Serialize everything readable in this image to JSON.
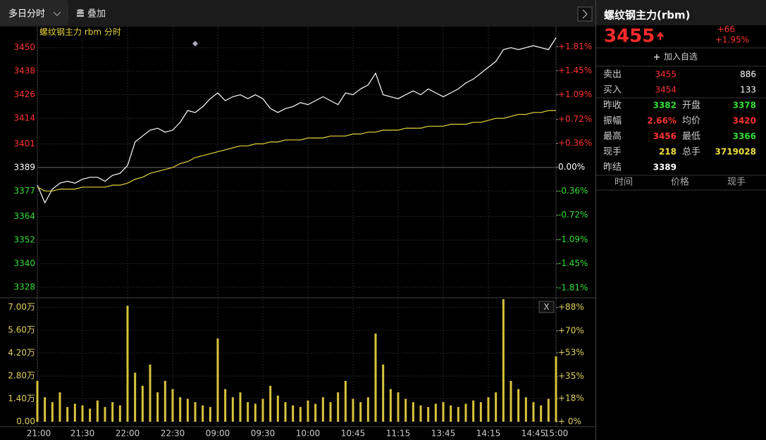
{
  "toolbar": {
    "tab": "多日分时",
    "overlay": "叠加"
  },
  "chart_data": [
    {
      "type": "line",
      "legend": "螺纹钢主力 rbm 分时",
      "x": [
        0,
        5,
        10,
        15,
        20,
        25,
        30,
        35,
        40,
        45,
        50,
        55,
        60,
        65,
        70,
        75,
        80,
        85,
        90,
        95,
        100,
        105,
        110,
        115,
        120,
        125,
        130,
        135,
        140,
        145,
        150,
        155,
        160,
        165,
        170,
        175,
        180,
        185,
        190,
        195,
        200,
        205,
        210,
        215,
        220,
        225,
        230,
        235,
        240,
        245,
        250,
        255,
        260,
        265,
        270,
        275,
        280,
        285,
        290,
        295,
        300,
        305,
        310,
        315,
        320,
        325,
        330,
        335,
        340,
        345
      ],
      "xlim": [
        0,
        345
      ],
      "ylim": [
        3323,
        3461
      ],
      "yticks": [
        3450,
        3438,
        3426,
        3414,
        3401,
        3389,
        3377,
        3364,
        3352,
        3340,
        3328
      ],
      "y2lim": [
        -1.95,
        2.12
      ],
      "y2ticks": [
        {
          "value": 1.81,
          "label": "+1.81%"
        },
        {
          "value": 1.45,
          "label": "+1.45%"
        },
        {
          "value": 1.09,
          "label": "+1.09%"
        },
        {
          "value": 0.72,
          "label": "+0.72%"
        },
        {
          "value": 0.36,
          "label": "+0.36%"
        },
        {
          "value": 0,
          "label": "0.00%"
        },
        {
          "value": -0.36,
          "label": "-0.36%"
        },
        {
          "value": -0.72,
          "label": "-0.72%"
        },
        {
          "value": -1.09,
          "label": "-1.09%"
        },
        {
          "value": -1.45,
          "label": "-1.45%"
        },
        {
          "value": -1.81,
          "label": "-1.81%"
        }
      ],
      "series": [
        {
          "color": "#ffffff",
          "values": [
            3380,
            3371,
            3378,
            3381,
            3382,
            3381,
            3383,
            3384,
            3384,
            3382,
            3385,
            3386,
            3390,
            3402,
            3405,
            3408,
            3409,
            3407,
            3408,
            3412,
            3418,
            3417,
            3420,
            3424,
            3427,
            3423,
            3425,
            3426,
            3424,
            3426,
            3424,
            3419,
            3417,
            3419,
            3420,
            3422,
            3421,
            3423,
            3425,
            3423,
            3421,
            3427,
            3426,
            3429,
            3431,
            3437,
            3426,
            3425,
            3424,
            3426,
            3428,
            3426,
            3429,
            3427,
            3425,
            3427,
            3429,
            3432,
            3434,
            3437,
            3440,
            3443,
            3449,
            3450,
            3449,
            3450,
            3451,
            3450,
            3449,
            3455
          ]
        },
        {
          "color": "#e6d23c",
          "values": [
            3379,
            3377,
            3377,
            3378,
            3378,
            3378,
            3379,
            3379,
            3379,
            3379,
            3380,
            3380,
            3381,
            3383,
            3384,
            3386,
            3387,
            3388,
            3389,
            3391,
            3392,
            3394,
            3395,
            3396,
            3397,
            3398,
            3399,
            3400,
            3400,
            3401,
            3401,
            3402,
            3402,
            3403,
            3403,
            3403,
            3404,
            3404,
            3404,
            3405,
            3405,
            3405,
            3406,
            3406,
            3407,
            3407,
            3408,
            3408,
            3408,
            3409,
            3409,
            3409,
            3410,
            3410,
            3410,
            3411,
            3411,
            3411,
            3412,
            3412,
            3413,
            3414,
            3414,
            3415,
            3416,
            3416,
            3417,
            3417,
            3418,
            3418
          ]
        }
      ]
    },
    {
      "type": "bar",
      "x": [
        0,
        5,
        10,
        15,
        20,
        25,
        30,
        35,
        40,
        45,
        50,
        55,
        60,
        65,
        70,
        75,
        80,
        85,
        90,
        95,
        100,
        105,
        110,
        115,
        120,
        125,
        130,
        135,
        140,
        145,
        150,
        155,
        160,
        165,
        170,
        175,
        180,
        185,
        190,
        195,
        200,
        205,
        210,
        215,
        220,
        225,
        230,
        235,
        240,
        245,
        250,
        255,
        260,
        265,
        270,
        275,
        280,
        285,
        290,
        295,
        300,
        305,
        310,
        315,
        320,
        325,
        330,
        335,
        340,
        345
      ],
      "xlim": [
        0,
        345
      ],
      "xticks": [
        {
          "value": 0,
          "label": "21:00"
        },
        {
          "value": 30,
          "label": "21:30"
        },
        {
          "value": 60,
          "label": "22:00"
        },
        {
          "value": 90,
          "label": "22:30"
        },
        {
          "value": 120,
          "label": "09:00"
        },
        {
          "value": 150,
          "label": "09:30"
        },
        {
          "value": 180,
          "label": "10:00"
        },
        {
          "value": 210,
          "label": "10:45"
        },
        {
          "value": 240,
          "label": "11:15"
        },
        {
          "value": 270,
          "label": "13:45"
        },
        {
          "value": 300,
          "label": "14:15"
        },
        {
          "value": 330,
          "label": "14:45"
        },
        {
          "value": 345,
          "label": "15:00"
        }
      ],
      "ylim": [
        -3000,
        75000
      ],
      "yticks": [
        {
          "value": 70000,
          "label": "7.00万"
        },
        {
          "value": 56000,
          "label": "5.60万"
        },
        {
          "value": 42000,
          "label": "4.20万"
        },
        {
          "value": 28000,
          "label": "2.80万"
        },
        {
          "value": 14000,
          "label": "1.40万"
        },
        {
          "value": 0,
          "label": "0.00"
        }
      ],
      "y2lim": [
        -3.77,
        94.29
      ],
      "y2ticks": [
        {
          "value": 88,
          "label": "+88%"
        },
        {
          "value": 70,
          "label": "+70%"
        },
        {
          "value": 53,
          "label": "+53%"
        },
        {
          "value": 35,
          "label": "+35%"
        },
        {
          "value": 18,
          "label": "+18%"
        },
        {
          "value": 0,
          "label": "+ 0%"
        }
      ],
      "color": "#d8c43c",
      "values": [
        25000,
        15000,
        12000,
        18000,
        9000,
        11000,
        10000,
        8000,
        13000,
        9000,
        12000,
        10000,
        71000,
        30000,
        22000,
        35000,
        18000,
        25000,
        20000,
        15000,
        14000,
        12000,
        10000,
        9000,
        51000,
        20000,
        15000,
        18000,
        12000,
        11000,
        14000,
        22000,
        16000,
        12000,
        10000,
        9000,
        13000,
        11000,
        15000,
        12000,
        18000,
        25000,
        14000,
        12000,
        15000,
        54000,
        35000,
        20000,
        18000,
        14000,
        12000,
        10000,
        9000,
        11000,
        12000,
        10000,
        9000,
        11000,
        13000,
        12000,
        15000,
        18000,
        75000,
        25000,
        20000,
        15000,
        12000,
        10000,
        14000,
        40000
      ]
    }
  ],
  "quote": {
    "name": "螺纹钢主力(rbm)",
    "last": 3455,
    "change": "+66",
    "change_pct": "+1.95%",
    "add": "加入自选",
    "book": [
      {
        "label": "卖出",
        "price": 3455,
        "volume": 886
      },
      {
        "label": "买入",
        "price": 3454,
        "volume": 133
      }
    ],
    "stats": [
      [
        {
          "label": "昨收",
          "value": 3382,
          "color": "#33dd33"
        },
        {
          "label": "开盘",
          "value": 3378,
          "color": "#33dd33"
        }
      ],
      [
        {
          "label": "振幅",
          "value": "2.66%",
          "color": "#ff3333"
        },
        {
          "label": "均价",
          "value": 3420,
          "color": "#ff3333"
        }
      ],
      [
        {
          "label": "最高",
          "value": 3456,
          "color": "#ff3333"
        },
        {
          "label": "最低",
          "value": 3366,
          "color": "#33dd33"
        }
      ],
      [
        {
          "label": "现手",
          "value": 218,
          "color": "#f0e040"
        },
        {
          "label": "总手",
          "value": 3719028,
          "color": "#f0e040"
        }
      ],
      [
        {
          "label": "昨结",
          "value": 3389,
          "color": "#ffffff"
        }
      ]
    ],
    "columns": [
      "时间",
      "价格",
      "现手"
    ]
  }
}
